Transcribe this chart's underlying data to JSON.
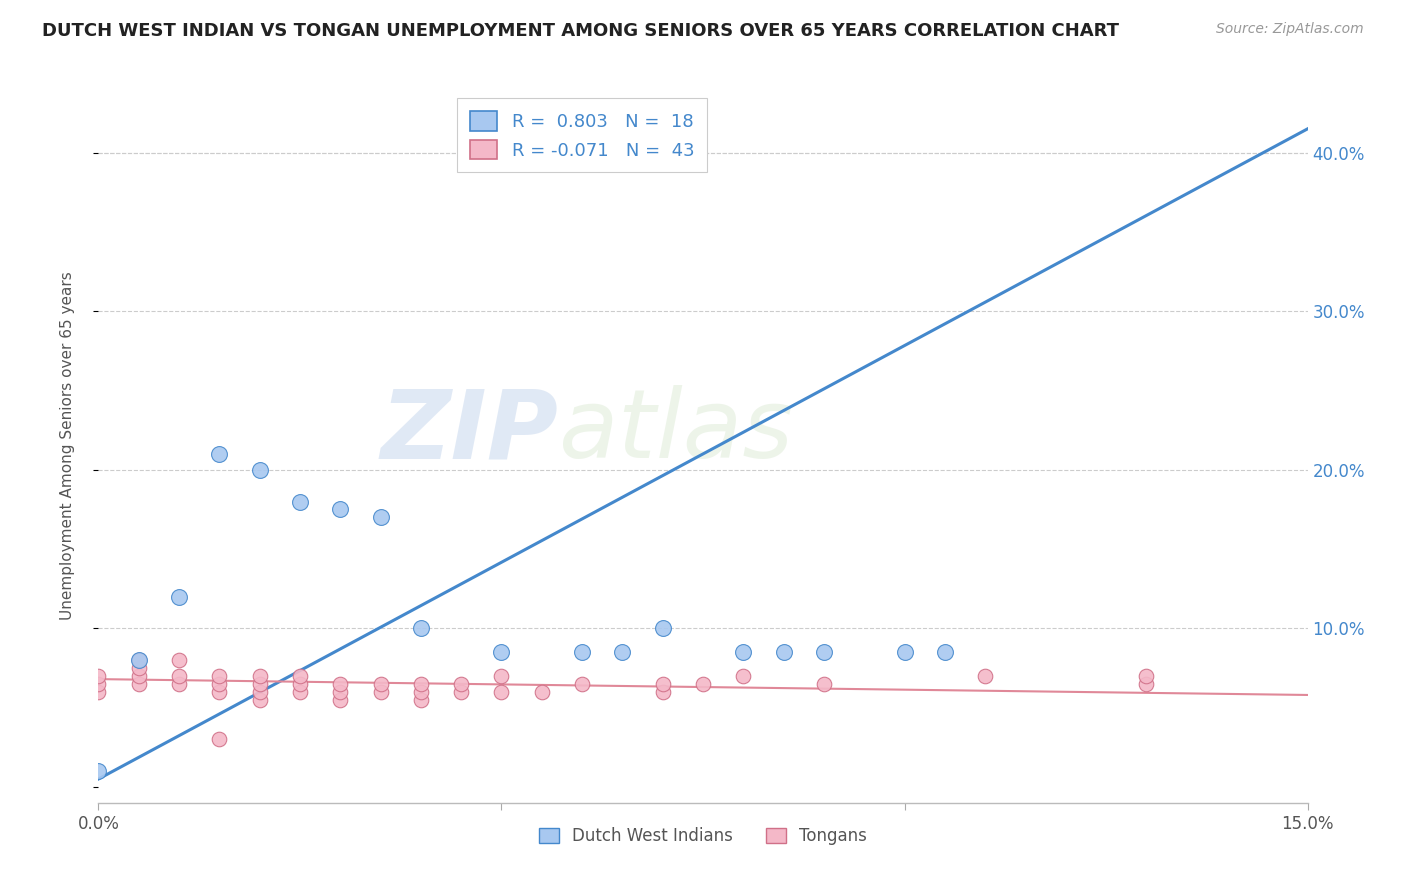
{
  "title": "DUTCH WEST INDIAN VS TONGAN UNEMPLOYMENT AMONG SENIORS OVER 65 YEARS CORRELATION CHART",
  "source": "Source: ZipAtlas.com",
  "ylabel": "Unemployment Among Seniors over 65 years",
  "xlim": [
    0.0,
    0.15
  ],
  "ylim": [
    -0.01,
    0.44
  ],
  "y_ticks": [
    0.0,
    0.1,
    0.2,
    0.3,
    0.4
  ],
  "y_tick_labels": [
    "",
    "10.0%",
    "20.0%",
    "30.0%",
    "40.0%"
  ],
  "color_blue": "#a8c8f0",
  "color_pink": "#f4b8c8",
  "color_blue_line": "#4488cc",
  "color_pink_line": "#e08898",
  "watermark_big": "ZIP",
  "watermark_small": "atlas",
  "dutch_x": [
    0.0,
    0.005,
    0.01,
    0.015,
    0.02,
    0.025,
    0.03,
    0.035,
    0.04,
    0.05,
    0.06,
    0.065,
    0.07,
    0.08,
    0.085,
    0.09,
    0.1,
    0.105
  ],
  "dutch_y": [
    0.01,
    0.08,
    0.12,
    0.21,
    0.2,
    0.18,
    0.175,
    0.17,
    0.1,
    0.085,
    0.085,
    0.085,
    0.1,
    0.085,
    0.085,
    0.085,
    0.085,
    0.085
  ],
  "tongan_x": [
    0.0,
    0.0,
    0.0,
    0.005,
    0.005,
    0.005,
    0.005,
    0.01,
    0.01,
    0.01,
    0.015,
    0.015,
    0.015,
    0.015,
    0.02,
    0.02,
    0.02,
    0.02,
    0.025,
    0.025,
    0.025,
    0.03,
    0.03,
    0.03,
    0.035,
    0.035,
    0.04,
    0.04,
    0.04,
    0.045,
    0.045,
    0.05,
    0.05,
    0.055,
    0.06,
    0.07,
    0.07,
    0.075,
    0.08,
    0.09,
    0.11,
    0.13,
    0.13
  ],
  "tongan_y": [
    0.06,
    0.065,
    0.07,
    0.065,
    0.07,
    0.075,
    0.08,
    0.065,
    0.07,
    0.08,
    0.03,
    0.06,
    0.065,
    0.07,
    0.055,
    0.06,
    0.065,
    0.07,
    0.06,
    0.065,
    0.07,
    0.055,
    0.06,
    0.065,
    0.06,
    0.065,
    0.055,
    0.06,
    0.065,
    0.06,
    0.065,
    0.06,
    0.07,
    0.06,
    0.065,
    0.06,
    0.065,
    0.065,
    0.07,
    0.065,
    0.07,
    0.065,
    0.07
  ],
  "dutch_line_x": [
    0.0,
    0.15
  ],
  "dutch_line_y": [
    0.005,
    0.415
  ],
  "tongan_line_x": [
    0.0,
    0.15
  ],
  "tongan_line_y": [
    0.068,
    0.058
  ],
  "legend_text1": "R =  0.803   N =  18",
  "legend_text2": "R = -0.071   N =  43"
}
